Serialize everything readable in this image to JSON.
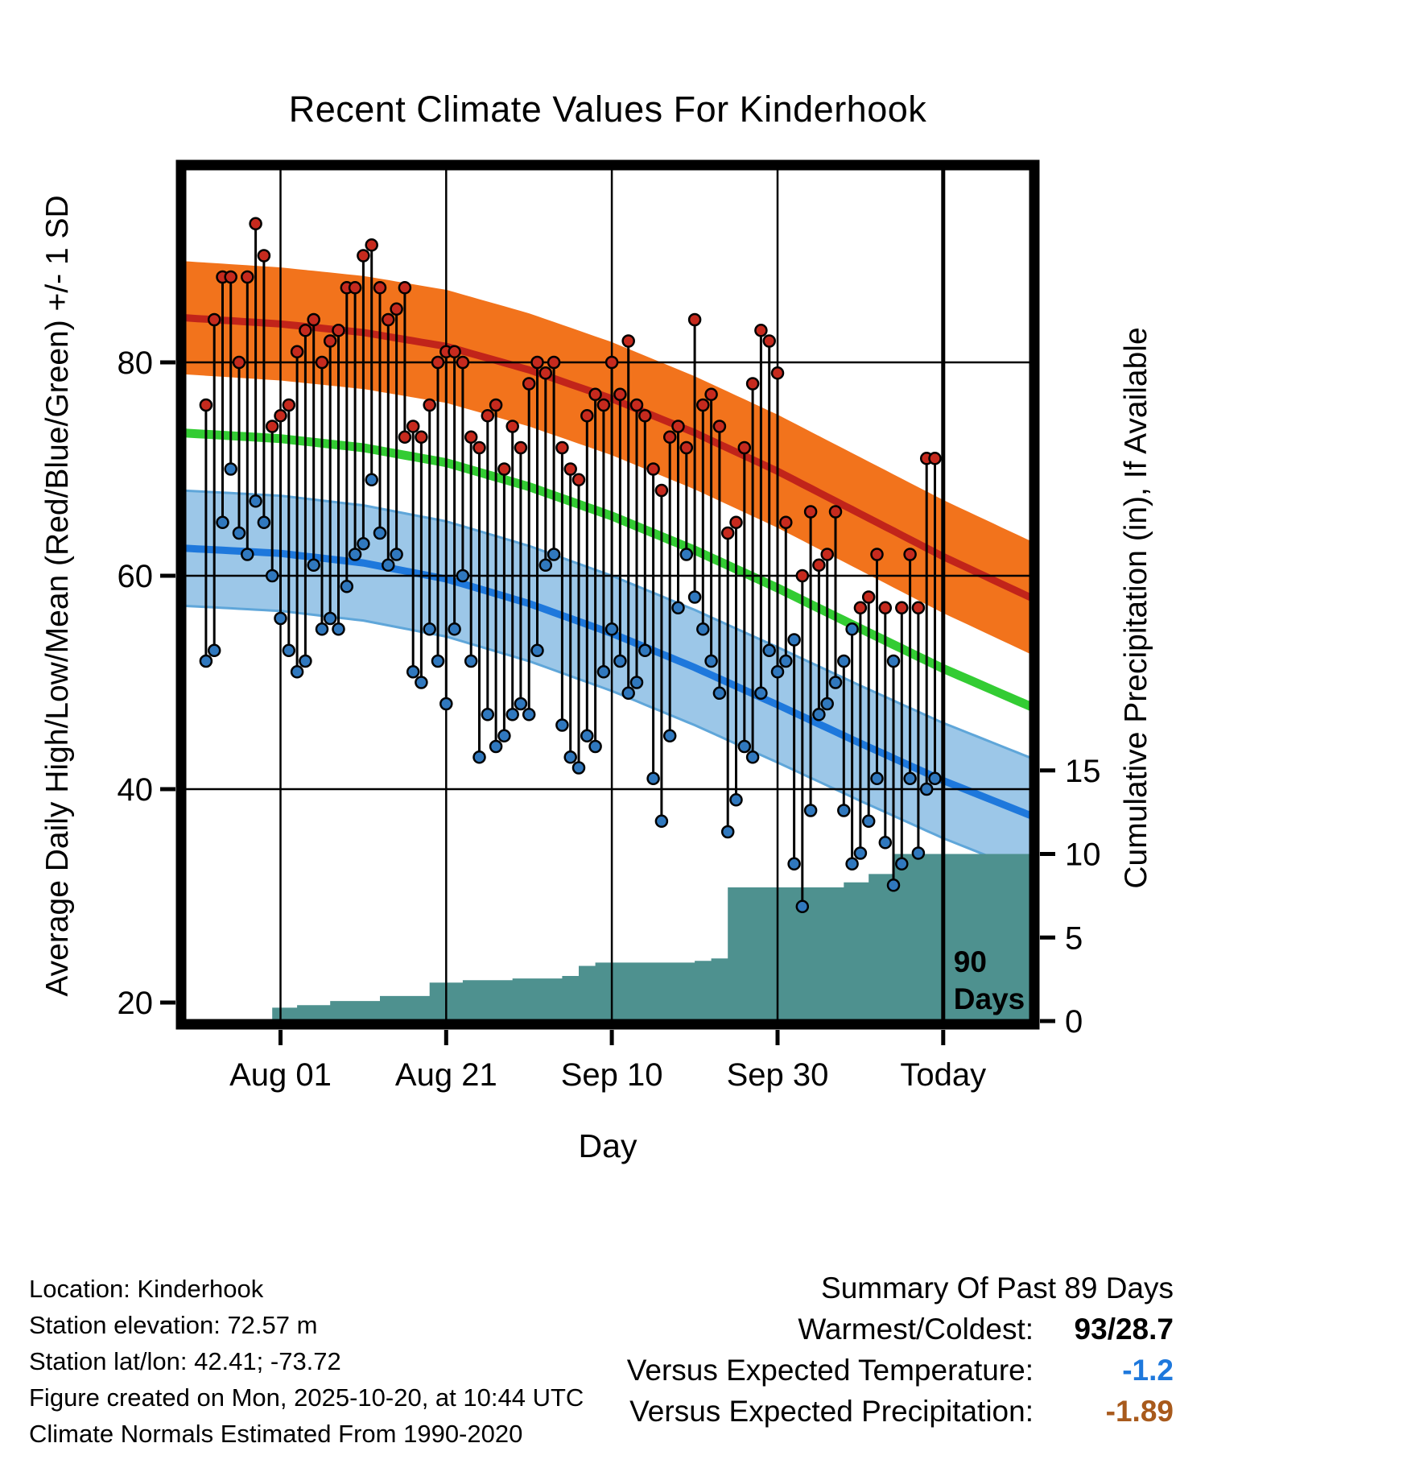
{
  "title": "Recent Climate Values For Kinderhook",
  "axes": {
    "left_label": "Average Daily High/Low/Mean (Red/Blue/Green) +/- 1 SD",
    "right_label": "Cumulative Precipitation (in), If Available",
    "x_label": "Day",
    "temp_ticks": [
      20,
      40,
      60,
      80
    ],
    "precip_ticks": [
      0,
      5,
      10,
      15
    ],
    "x_ticks": [
      {
        "day": 12,
        "label": "Aug 01"
      },
      {
        "day": 32,
        "label": "Aug 21"
      },
      {
        "day": 52,
        "label": "Sep 10"
      },
      {
        "day": 72,
        "label": "Sep 30"
      },
      {
        "day": 92,
        "label": "Today"
      }
    ]
  },
  "marker_label": {
    "line1": "90",
    "line2": "Days"
  },
  "chart_data": {
    "type": "composite",
    "description": "Daily high/low temperature ranges versus climate normal bands (+/- 1 SD) with cumulative precipitation step area",
    "day_index_origin_date": "Jul 20",
    "x_domain_days": [
      0,
      103
    ],
    "today_day_index": 92,
    "temp_ylim": [
      18,
      98
    ],
    "precip_ylim": [
      0,
      15
    ],
    "normals": {
      "anchor_days": [
        0,
        12,
        22,
        32,
        42,
        52,
        62,
        72,
        82,
        92,
        103
      ],
      "high_mean": [
        84.2,
        83.6,
        82.8,
        81.5,
        79.3,
        76.6,
        73.4,
        69.8,
        65.8,
        61.8,
        57.8
      ],
      "low_mean": [
        62.6,
        62.1,
        61.2,
        59.7,
        57.4,
        54.6,
        51.4,
        47.9,
        44.3,
        40.8,
        37.4
      ],
      "high_sd": 5.3,
      "low_sd": 5.4
    },
    "daily": {
      "start_day_index": 3,
      "highs": [
        76,
        84,
        88,
        88,
        80,
        88,
        93,
        90,
        74,
        75,
        76,
        81,
        83,
        84,
        80,
        82,
        83,
        87,
        87,
        90,
        91,
        87,
        84,
        85,
        87,
        74,
        73,
        76,
        80,
        81,
        81,
        80,
        73,
        72,
        75,
        76,
        70,
        74,
        72,
        78,
        80,
        79,
        80,
        72,
        70,
        69,
        75,
        77,
        76,
        80,
        77,
        82,
        76,
        75,
        70,
        68,
        73,
        74,
        72,
        84,
        76,
        77,
        74,
        64,
        65,
        72,
        78,
        83,
        82,
        79,
        65,
        54,
        60,
        66,
        61,
        62,
        66,
        52,
        55,
        57,
        58,
        62,
        57,
        52,
        57,
        62,
        57,
        71,
        71
      ],
      "lows": [
        52,
        53,
        65,
        70,
        64,
        62,
        67,
        65,
        60,
        56,
        53,
        51,
        52,
        61,
        55,
        56,
        55,
        59,
        62,
        63,
        69,
        64,
        61,
        62,
        73,
        51,
        50,
        55,
        52,
        48,
        55,
        60,
        52,
        43,
        47,
        44,
        45,
        47,
        48,
        47,
        53,
        61,
        62,
        46,
        43,
        42,
        45,
        44,
        51,
        55,
        52,
        49,
        50,
        53,
        41,
        37,
        45,
        57,
        62,
        58,
        55,
        52,
        49,
        36,
        39,
        44,
        43,
        49,
        53,
        51,
        52,
        33,
        29,
        38,
        47,
        48,
        50,
        38,
        33,
        34,
        37,
        41,
        35,
        31,
        33,
        41,
        34,
        40,
        41
      ]
    },
    "precip_cumulative_steps": [
      {
        "day": 0,
        "value": 0
      },
      {
        "day": 6,
        "value": 0.1
      },
      {
        "day": 11,
        "value": 0.8
      },
      {
        "day": 14,
        "value": 0.95
      },
      {
        "day": 18,
        "value": 1.2
      },
      {
        "day": 24,
        "value": 1.5
      },
      {
        "day": 30,
        "value": 2.3
      },
      {
        "day": 34,
        "value": 2.45
      },
      {
        "day": 40,
        "value": 2.55
      },
      {
        "day": 46,
        "value": 2.7
      },
      {
        "day": 48,
        "value": 3.3
      },
      {
        "day": 50,
        "value": 3.5
      },
      {
        "day": 62,
        "value": 3.6
      },
      {
        "day": 64,
        "value": 3.75
      },
      {
        "day": 66,
        "value": 8.0
      },
      {
        "day": 80,
        "value": 8.3
      },
      {
        "day": 83,
        "value": 8.8
      },
      {
        "day": 86,
        "value": 10.0
      },
      {
        "day": 103,
        "value": 10.0
      }
    ],
    "colors": {
      "high_band": "#F2731C",
      "high_line": "#C1241A",
      "low_band": "#9CC7E8",
      "low_band_edge": "#5FA6D9",
      "low_line": "#1E78DC",
      "mean_line": "#33CC33",
      "precip_fill": "#4E918F",
      "dot_high": "#C62A1E",
      "dot_low": "#3078BE",
      "daily_line": "#000000"
    }
  },
  "station_info": [
    "Location: Kinderhook",
    "Station elevation: 72.57 m",
    "Station lat/lon: 42.41; -73.72",
    "Figure created on Mon, 2025-10-20, at 10:44 UTC",
    "Climate Normals Estimated From 1990-2020"
  ],
  "summary": {
    "heading": "Summary Of Past 89 Days",
    "rows": [
      {
        "label": "Warmest/Coldest:",
        "value": "93/28.7",
        "color": "#000000"
      },
      {
        "label": "Versus Expected Temperature:",
        "value": "-1.2",
        "color": "#1E78DC"
      },
      {
        "label": "Versus Expected Precipitation:",
        "value": "-1.89",
        "color": "#A85A1C"
      }
    ]
  }
}
